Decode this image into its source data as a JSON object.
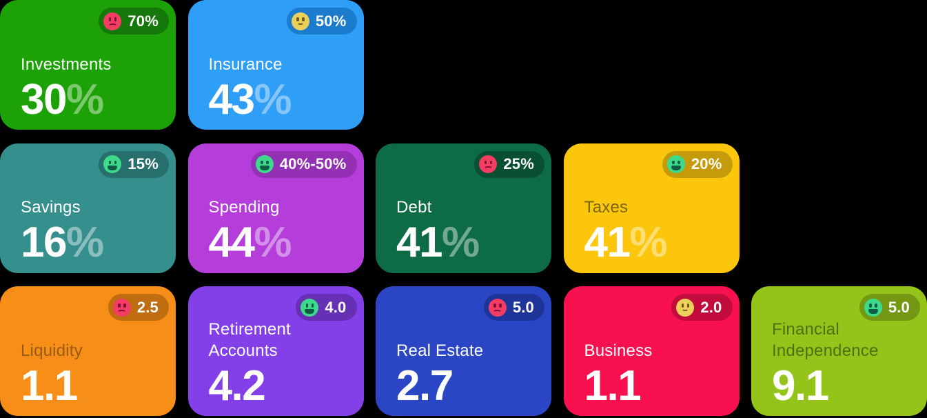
{
  "page": {
    "background": "#000000"
  },
  "cards": [
    {
      "label": "Investments",
      "value": "30",
      "suffix": "%",
      "badge": {
        "face": "sad",
        "text": "70%"
      },
      "colors": {
        "bg": "#1CA106",
        "badge_bg": "#14790A",
        "label": "#FFFFFF"
      }
    },
    {
      "label": "Insurance",
      "value": "43",
      "suffix": "%",
      "badge": {
        "face": "neutral",
        "text": "50%"
      },
      "colors": {
        "bg": "#2E9EF7",
        "badge_bg": "#1B7BCC",
        "label": "#FFFFFF"
      }
    },
    {
      "label": "Savings",
      "value": "16",
      "suffix": "%",
      "badge": {
        "face": "happy",
        "text": "15%"
      },
      "colors": {
        "bg": "#35908D",
        "badge_bg": "#276F6D",
        "label": "#FFFFFF"
      }
    },
    {
      "label": "Spending",
      "value": "44",
      "suffix": "%",
      "badge": {
        "face": "happy",
        "text": "40%-50%"
      },
      "colors": {
        "bg": "#B53EDB",
        "badge_bg": "#9430B4",
        "label": "#FFFFFF"
      }
    },
    {
      "label": "Debt",
      "value": "41",
      "suffix": "%",
      "badge": {
        "face": "sad",
        "text": "25%"
      },
      "colors": {
        "bg": "#0D6B45",
        "badge_bg": "#084F33",
        "label": "#FFFFFF"
      }
    },
    {
      "label": "Taxes",
      "value": "41",
      "suffix": "%",
      "badge": {
        "face": "happy",
        "text": "20%"
      },
      "colors": {
        "bg": "#FCC60D",
        "badge_bg": "#C59B0B",
        "label": "#7A660D"
      }
    },
    {
      "label": "Liquidity",
      "value": "1.1",
      "suffix": "",
      "badge": {
        "face": "sad",
        "text": "2.5"
      },
      "colors": {
        "bg": "#F78E17",
        "badge_bg": "#C06C10",
        "label": "#9A5A17"
      }
    },
    {
      "label": "Retirement Accounts",
      "value": "4.2",
      "suffix": "",
      "badge": {
        "face": "happy",
        "text": "4.0"
      },
      "colors": {
        "bg": "#8440E8",
        "badge_bg": "#6630B5",
        "label": "#FFFFFF"
      }
    },
    {
      "label": "Real Estate",
      "value": "2.7",
      "suffix": "",
      "badge": {
        "face": "sad",
        "text": "5.0"
      },
      "colors": {
        "bg": "#2B46C5",
        "badge_bg": "#1F3498",
        "label": "#FFFFFF"
      }
    },
    {
      "label": "Business",
      "value": "1.1",
      "suffix": "",
      "badge": {
        "face": "neutral",
        "text": "2.0"
      },
      "colors": {
        "bg": "#F8104F",
        "badge_bg": "#C20C3E",
        "label": "#FFFFFF"
      }
    },
    {
      "label": "Financial Independence",
      "value": "9.1",
      "suffix": "",
      "badge": {
        "face": "happy",
        "text": "5.0"
      },
      "colors": {
        "bg": "#94C319",
        "badge_bg": "#749813",
        "label": "#4F7012"
      }
    }
  ]
}
